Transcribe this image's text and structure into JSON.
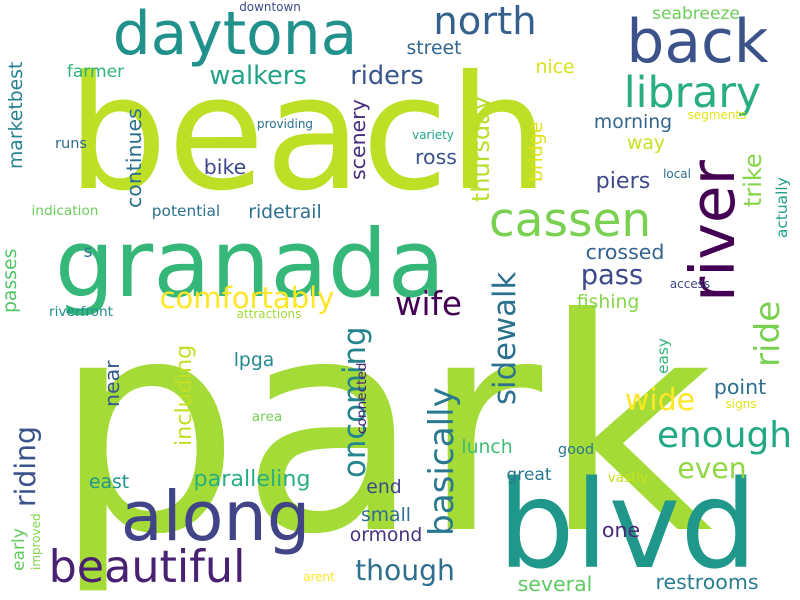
{
  "words": [
    {
      "id": "w-park",
      "text": "park",
      "color": "#a5db36"
    },
    {
      "id": "w-beach",
      "text": "beach",
      "color": "#bddf26"
    },
    {
      "id": "w-blvd",
      "text": "blvd",
      "color": "#1f988b"
    },
    {
      "id": "w-granada",
      "text": "granada",
      "color": "#35b779"
    },
    {
      "id": "w-daytona",
      "text": "daytona",
      "color": "#21918c"
    },
    {
      "id": "w-river",
      "text": "river",
      "color": "#440154"
    },
    {
      "id": "w-back",
      "text": "back",
      "color": "#3b528b"
    },
    {
      "id": "w-along",
      "text": "along",
      "color": "#414487"
    },
    {
      "id": "w-cassen",
      "text": "cassen",
      "color": "#7ad151"
    },
    {
      "id": "w-library",
      "text": "library",
      "color": "#28ae80"
    },
    {
      "id": "w-north",
      "text": "north",
      "color": "#355f8d"
    },
    {
      "id": "w-beautiful",
      "text": "beautiful",
      "color": "#482173"
    },
    {
      "id": "w-ride",
      "text": "ride",
      "color": "#7ad151"
    },
    {
      "id": "w-basically",
      "text": "basically",
      "color": "#2a788e"
    },
    {
      "id": "w-sidewalk",
      "text": "sidewalk",
      "color": "#2c728e"
    },
    {
      "id": "w-comfortably",
      "text": "comfortably",
      "color": "#fde725"
    },
    {
      "id": "w-enough",
      "text": "enough",
      "color": "#22a884"
    },
    {
      "id": "w-trike",
      "text": "trike",
      "color": "#86d549"
    },
    {
      "id": "w-wide",
      "text": "wide",
      "color": "#fde725"
    },
    {
      "id": "w-wife",
      "text": "wife",
      "color": "#440154"
    },
    {
      "id": "w-walkers",
      "text": "walkers",
      "color": "#20a386"
    },
    {
      "id": "w-riders",
      "text": "riders",
      "color": "#39568c"
    },
    {
      "id": "w-though",
      "text": "though",
      "color": "#2e6e8e"
    },
    {
      "id": "w-oncoming",
      "text": "oncoming",
      "color": "#25858e"
    },
    {
      "id": "w-even",
      "text": "even",
      "color": "#90d743"
    },
    {
      "id": "w-riding",
      "text": "riding",
      "color": "#3b528b"
    },
    {
      "id": "w-pass",
      "text": "pass",
      "color": "#3e4989"
    },
    {
      "id": "w-paralleling",
      "text": "paralleling",
      "color": "#29af7f"
    },
    {
      "id": "w-scenery",
      "text": "scenery",
      "color": "#472d7b"
    },
    {
      "id": "w-continues",
      "text": "continues",
      "color": "#2d708e"
    },
    {
      "id": "w-street",
      "text": "street",
      "color": "#31678e"
    },
    {
      "id": "w-piers",
      "text": "piers",
      "color": "#3e4989"
    },
    {
      "id": "w-bike",
      "text": "bike",
      "color": "#3f4889"
    },
    {
      "id": "w-ross",
      "text": "ross",
      "color": "#3b528b"
    },
    {
      "id": "w-thursday",
      "text": "thursday",
      "color": "#b8de29"
    },
    {
      "id": "w-including",
      "text": "including",
      "color": "#c2df23"
    },
    {
      "id": "w-crossed",
      "text": "crossed",
      "color": "#33628d"
    },
    {
      "id": "w-fishing",
      "text": "fishing",
      "color": "#86d549"
    },
    {
      "id": "w-point",
      "text": "point",
      "color": "#2e6e8e"
    },
    {
      "id": "w-marketbest",
      "text": "marketbest",
      "color": "#26828e"
    },
    {
      "id": "w-ridetrail",
      "text": "ridetrail",
      "color": "#2d708e"
    },
    {
      "id": "w-morning",
      "text": "morning",
      "color": "#32658e"
    },
    {
      "id": "w-lunch",
      "text": "lunch",
      "color": "#3dbc74"
    },
    {
      "id": "w-near",
      "text": "near",
      "color": "#38598c"
    },
    {
      "id": "w-restrooms",
      "text": "restrooms",
      "color": "#287d8e"
    },
    {
      "id": "w-small",
      "text": "small",
      "color": "#2e6d8e"
    },
    {
      "id": "w-ormond",
      "text": "ormond",
      "color": "#46327e"
    },
    {
      "id": "w-several",
      "text": "several",
      "color": "#5ec962"
    },
    {
      "id": "w-great",
      "text": "great",
      "color": "#2a788e"
    },
    {
      "id": "w-east",
      "text": "east",
      "color": "#1f958b"
    },
    {
      "id": "w-end",
      "text": "end",
      "color": "#3e4989"
    },
    {
      "id": "w-one",
      "text": "one",
      "color": "#482878"
    },
    {
      "id": "w-way",
      "text": "way",
      "color": "#c8e020"
    },
    {
      "id": "w-lpga",
      "text": "lpga",
      "color": "#23898e"
    },
    {
      "id": "w-nice",
      "text": "nice",
      "color": "#d8e219"
    },
    {
      "id": "w-farmer",
      "text": "farmer",
      "color": "#2fb47c"
    },
    {
      "id": "w-early",
      "text": "early",
      "color": "#63cb5f"
    },
    {
      "id": "w-seabreeze",
      "text": "seabreeze",
      "color": "#6ccd5a"
    },
    {
      "id": "w-passes",
      "text": "passes",
      "color": "#52c569"
    },
    {
      "id": "w-riverfront",
      "text": "riverfront",
      "color": "#228c8d"
    },
    {
      "id": "w-runs",
      "text": "runs",
      "color": "#31688e"
    },
    {
      "id": "w-potential",
      "text": "potential",
      "color": "#2c718e"
    },
    {
      "id": "w-indication",
      "text": "indication",
      "color": "#6ccd5a"
    },
    {
      "id": "w-actually",
      "text": "actually",
      "color": "#1f9f88"
    },
    {
      "id": "w-bridge",
      "text": "bridge",
      "color": "#dfe318"
    },
    {
      "id": "w-easy",
      "text": "easy",
      "color": "#32b67a"
    },
    {
      "id": "w-area",
      "text": "area",
      "color": "#75d054"
    },
    {
      "id": "w-connected",
      "text": "connected",
      "color": "#482475"
    },
    {
      "id": "w-good",
      "text": "good",
      "color": "#2a768e"
    },
    {
      "id": "w-vastly",
      "text": "vastly",
      "color": "#cae11f"
    },
    {
      "id": "w-s",
      "text": "s",
      "color": "#2d708e"
    },
    {
      "id": "w-improved",
      "text": "improved",
      "color": "#84d44b"
    },
    {
      "id": "w-downtown",
      "text": "downtown",
      "color": "#3e4a89"
    },
    {
      "id": "w-providing",
      "text": "providing",
      "color": "#2d708e"
    },
    {
      "id": "w-segments",
      "text": "segments",
      "color": "#e5e419"
    },
    {
      "id": "w-variety",
      "text": "variety",
      "color": "#20a486"
    },
    {
      "id": "w-local",
      "text": "local",
      "color": "#2e6e8e"
    },
    {
      "id": "w-access",
      "text": "access",
      "color": "#3f4788"
    },
    {
      "id": "w-attractions",
      "text": "attractions",
      "color": "#a2da37"
    },
    {
      "id": "w-signs",
      "text": "signs",
      "color": "#e2e418"
    },
    {
      "id": "w-arent",
      "text": "arent",
      "color": "#fde725"
    }
  ]
}
